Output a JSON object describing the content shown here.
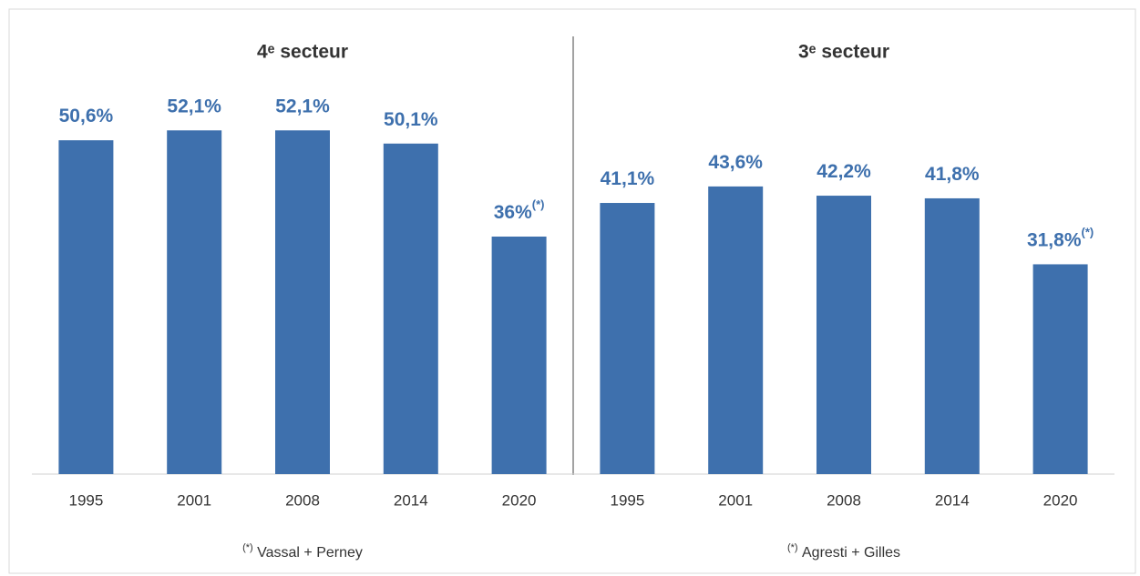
{
  "chart_data": [
    {
      "type": "bar",
      "title": "4ᵉ secteur",
      "categories": [
        "1995",
        "2001",
        "2008",
        "2014",
        "2020"
      ],
      "values": [
        50.6,
        52.1,
        52.1,
        50.1,
        36
      ],
      "value_labels": [
        "50,6%",
        "52,1%",
        "52,1%",
        "50,1%",
        "36%"
      ],
      "value_label_notes": [
        null,
        null,
        null,
        null,
        "(*)"
      ],
      "color": "#3e70ad",
      "ylim": [
        0,
        70
      ],
      "footnote": {
        "mark": "(*)",
        "text": "Vassal + Perney"
      }
    },
    {
      "type": "bar",
      "title": "3ᵉ secteur",
      "categories": [
        "1995",
        "2001",
        "2008",
        "2014",
        "2020"
      ],
      "values": [
        41.1,
        43.6,
        42.2,
        41.8,
        31.8
      ],
      "value_labels": [
        "41,1%",
        "43,6%",
        "42,2%",
        "41,8%",
        "31,8%"
      ],
      "value_label_notes": [
        null,
        null,
        null,
        null,
        "(*)"
      ],
      "color": "#3e70ad",
      "ylim": [
        0,
        70
      ],
      "footnote": {
        "mark": "(*)",
        "text": "Agresti + Gilles"
      }
    }
  ]
}
